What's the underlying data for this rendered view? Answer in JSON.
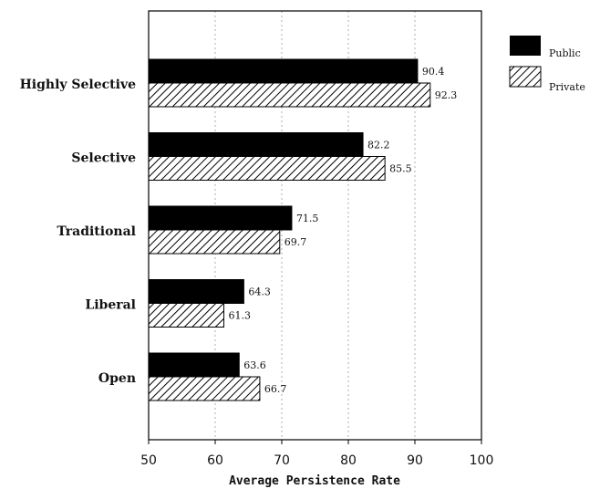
{
  "chart_data": {
    "type": "bar",
    "orientation": "horizontal",
    "categories": [
      "Highly Selective",
      "Selective",
      "Traditional",
      "Liberal",
      "Open"
    ],
    "series": [
      {
        "name": "Public",
        "values": [
          90.4,
          82.2,
          71.5,
          64.3,
          63.6
        ],
        "fill": "solid-black"
      },
      {
        "name": "Private",
        "values": [
          92.3,
          85.5,
          69.7,
          61.3,
          66.7
        ],
        "fill": "diagonal-hatch"
      }
    ],
    "xlabel": "Average Persistence Rate",
    "xlim": [
      50,
      100
    ],
    "xticks": [
      50,
      60,
      70,
      80,
      90,
      100
    ],
    "grid": "vertical-dashed",
    "legend": "top-right",
    "colors": {
      "public": "#000000",
      "private_hatch": "#000000",
      "background": "#ffffff"
    }
  }
}
